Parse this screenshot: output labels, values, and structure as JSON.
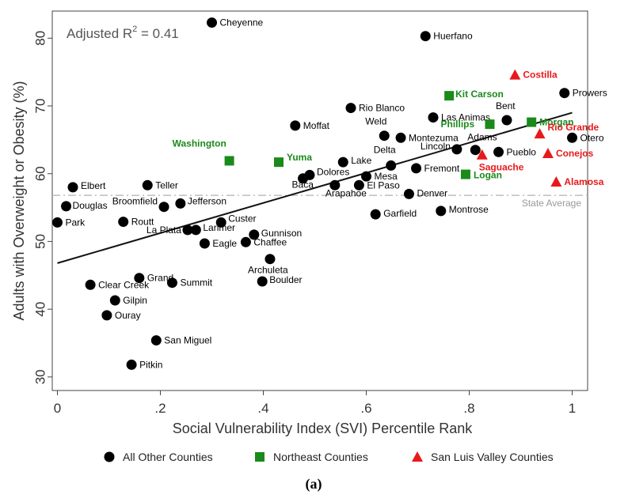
{
  "chart_data": {
    "type": "scatter",
    "xlabel": "Social Vulnerability Index (SVI) Percentile Rank",
    "ylabel": "Adults with Overweight or Obesity (%)",
    "xlim": [
      -0.01,
      1.03
    ],
    "ylim": [
      28,
      84
    ],
    "x_ticks": [
      0,
      0.2,
      0.4,
      0.6,
      0.8,
      1
    ],
    "x_tick_labels": [
      "0",
      ".2",
      ".4",
      ".6",
      ".8",
      "1"
    ],
    "y_ticks": [
      30,
      40,
      50,
      60,
      70,
      80
    ],
    "y_tick_labels": [
      "30",
      "40",
      "50",
      "60",
      "70",
      "80"
    ],
    "annotation": "Adjusted R",
    "annotation_sup": "2",
    "annotation_value": " = 0.41",
    "reference_line": {
      "label": "State Average",
      "y": 56.8,
      "color": "#b0b0b0"
    },
    "fit_line": {
      "x": [
        0,
        1
      ],
      "y": [
        46.8,
        69.0
      ],
      "color": "#111111"
    },
    "subfigure_label": "(a)",
    "legend_position": "bottom",
    "series": [
      {
        "name": "All Other Counties",
        "marker": "circle",
        "color": "#000000",
        "label_color": "#000000",
        "points": [
          {
            "label": "Cheyenne",
            "x": 0.3,
            "y": 82.3
          },
          {
            "label": "Huerfano",
            "x": 0.715,
            "y": 80.3
          },
          {
            "label": "Prowers",
            "x": 0.985,
            "y": 71.9
          },
          {
            "label": "Rio Blanco",
            "x": 0.57,
            "y": 69.7
          },
          {
            "label": "Las Animas",
            "x": 0.73,
            "y": 68.3
          },
          {
            "label": "Bent",
            "x": 0.873,
            "y": 67.9
          },
          {
            "label": "Moffat",
            "x": 0.462,
            "y": 67.1
          },
          {
            "label": "Weld",
            "x": 0.635,
            "y": 65.6
          },
          {
            "label": "Montezuma",
            "x": 0.667,
            "y": 65.3
          },
          {
            "label": "Otero",
            "x": 1.0,
            "y": 65.3
          },
          {
            "label": "Adams",
            "x": 0.812,
            "y": 63.5
          },
          {
            "label": "Lincoln",
            "x": 0.776,
            "y": 63.6
          },
          {
            "label": "Pueblo",
            "x": 0.857,
            "y": 63.2
          },
          {
            "label": "Delta",
            "x": 0.648,
            "y": 61.2
          },
          {
            "label": "Lake",
            "x": 0.555,
            "y": 61.7
          },
          {
            "label": "Fremont",
            "x": 0.697,
            "y": 60.8
          },
          {
            "label": "Dolores",
            "x": 0.49,
            "y": 59.8
          },
          {
            "label": "Mesa",
            "x": 0.6,
            "y": 59.6
          },
          {
            "label": "Baca",
            "x": 0.477,
            "y": 59.3
          },
          {
            "label": "El Paso",
            "x": 0.586,
            "y": 58.3
          },
          {
            "label": "Arapahoe",
            "x": 0.539,
            "y": 58.3
          },
          {
            "label": "Elbert",
            "x": 0.03,
            "y": 58.0
          },
          {
            "label": "Teller",
            "x": 0.175,
            "y": 58.3
          },
          {
            "label": "Denver",
            "x": 0.683,
            "y": 57.0
          },
          {
            "label": "Jefferson",
            "x": 0.239,
            "y": 55.6
          },
          {
            "label": "Douglas",
            "x": 0.017,
            "y": 55.2
          },
          {
            "label": "Broomfield",
            "x": 0.207,
            "y": 55.1
          },
          {
            "label": "Montrose",
            "x": 0.745,
            "y": 54.5
          },
          {
            "label": "Garfield",
            "x": 0.618,
            "y": 54.0
          },
          {
            "label": "Park",
            "x": 0.0,
            "y": 52.8
          },
          {
            "label": "Routt",
            "x": 0.128,
            "y": 52.9
          },
          {
            "label": "Custer",
            "x": 0.318,
            "y": 52.8
          },
          {
            "label": "La Plata",
            "x": 0.253,
            "y": 51.7
          },
          {
            "label": "Larimer",
            "x": 0.269,
            "y": 51.7
          },
          {
            "label": "Gunnison",
            "x": 0.382,
            "y": 51.0
          },
          {
            "label": "Chaffee",
            "x": 0.366,
            "y": 49.9
          },
          {
            "label": "Eagle",
            "x": 0.286,
            "y": 49.7
          },
          {
            "label": "Archuleta",
            "x": 0.413,
            "y": 47.4
          },
          {
            "label": "Grand",
            "x": 0.159,
            "y": 44.6
          },
          {
            "label": "Boulder",
            "x": 0.398,
            "y": 44.1
          },
          {
            "label": "Summit",
            "x": 0.223,
            "y": 43.9
          },
          {
            "label": "Clear Creek",
            "x": 0.064,
            "y": 43.6
          },
          {
            "label": "Gilpin",
            "x": 0.112,
            "y": 41.3
          },
          {
            "label": "Ouray",
            "x": 0.096,
            "y": 39.1
          },
          {
            "label": "San Miguel",
            "x": 0.192,
            "y": 35.4
          },
          {
            "label": "Pitkin",
            "x": 0.144,
            "y": 31.8
          }
        ]
      },
      {
        "name": "Northeast Counties",
        "marker": "square",
        "color": "#1a8a1a",
        "label_color": "#1a8a1a",
        "points": [
          {
            "label": "Kit Carson",
            "x": 0.761,
            "y": 71.5
          },
          {
            "label": "Morgan",
            "x": 0.921,
            "y": 67.6
          },
          {
            "label": "Phillips",
            "x": 0.84,
            "y": 67.3
          },
          {
            "label": "Washington",
            "x": 0.334,
            "y": 61.9
          },
          {
            "label": "Yuma",
            "x": 0.43,
            "y": 61.7
          },
          {
            "label": "Logan",
            "x": 0.793,
            "y": 59.9
          }
        ]
      },
      {
        "name": "San Luis Valley Counties",
        "marker": "triangle",
        "color": "#e8191b",
        "label_color": "#e8191b",
        "points": [
          {
            "label": "Costilla",
            "x": 0.889,
            "y": 74.6
          },
          {
            "label": "Rio Grande",
            "x": 0.937,
            "y": 65.9
          },
          {
            "label": "Conejos",
            "x": 0.953,
            "y": 63.0
          },
          {
            "label": "Saguache",
            "x": 0.825,
            "y": 62.8
          },
          {
            "label": "Alamosa",
            "x": 0.969,
            "y": 58.8
          }
        ]
      }
    ]
  }
}
